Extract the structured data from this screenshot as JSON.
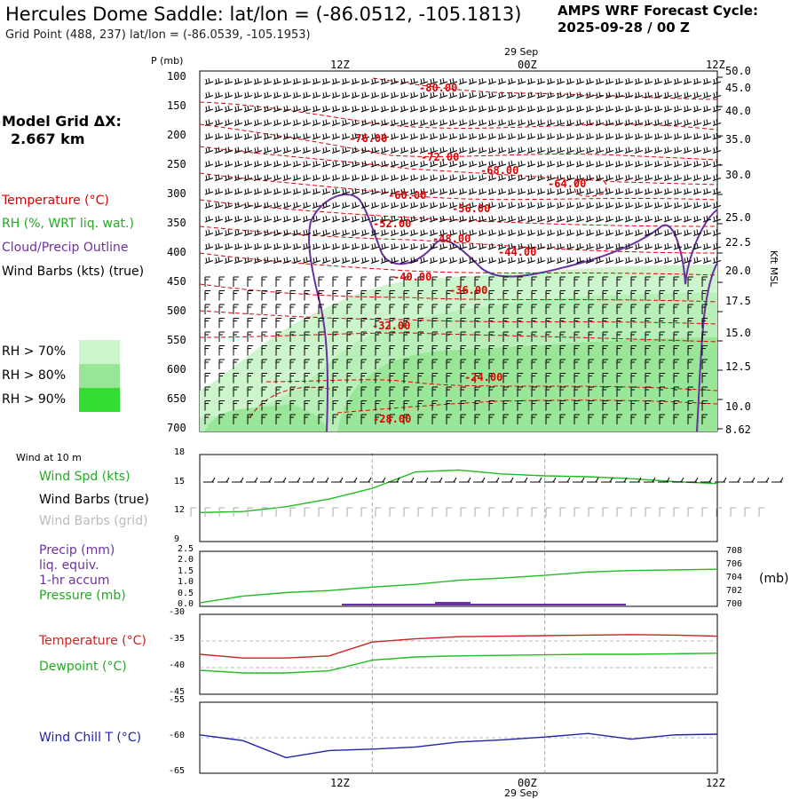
{
  "title": "Hercules Dome Saddle:  lat/lon = (-86.0512, -105.1813)",
  "subtitle": "Grid Point (488, 237) lat/lon = (-86.0539, -105.1953)",
  "cycle_line1": "AMPS WRF Forecast Cycle:",
  "cycle_line2": "2025-09-28 / 00  Z",
  "grid_dx_line1": "Model Grid ΔX:",
  "grid_dx_line2": "2.667 km",
  "time_axis": {
    "date_label": "29 Sep",
    "ticks": [
      "12Z",
      "00Z",
      "12Z"
    ]
  },
  "legend": {
    "temperature": "Temperature (°C)",
    "temperature_color": "#dd0000",
    "rh": "RH (%, WRT liq. wat.)",
    "rh_color": "#22bb22",
    "cloud": "Cloud/Precip Outline",
    "cloud_color": "#7030a0",
    "wind": "Wind Barbs (kts) (true)",
    "rh_levels": [
      {
        "label": "RH > 70%",
        "color": "#ccf5cc"
      },
      {
        "label": "RH > 80%",
        "color": "#99e699"
      },
      {
        "label": "RH > 90%",
        "color": "#33dd33"
      }
    ]
  },
  "pressure_axis": {
    "label": "P (mb)",
    "ticks": [
      "100",
      "150",
      "200",
      "250",
      "300",
      "350",
      "400",
      "450",
      "500",
      "550",
      "600",
      "650",
      "700"
    ]
  },
  "height_axis": {
    "label": "Kft MSL",
    "ticks": [
      "50.0",
      "45.0",
      "40.0",
      "35.0",
      "30.0",
      "25.0",
      "22.5",
      "20.0",
      "17.5",
      "15.0",
      "12.5",
      "10.0",
      "8.62"
    ]
  },
  "temperature_labels": [
    "-80.00",
    "-76.00",
    "-72.00",
    "-68.00",
    "-64.00",
    "-60.00",
    "-56.00",
    "-52.00",
    "-48.00",
    "-44.00",
    "-40.00",
    "-36.00",
    "-32.00",
    "-24.00",
    "-28.00"
  ],
  "sfc_wind": {
    "header": "Wind at 10 m",
    "spd_label": "Wind Spd (kts)",
    "barbs_true": "Wind Barbs (true)",
    "barbs_grid": "Wind Barbs (grid)",
    "yticks": [
      "18",
      "15",
      "12",
      "9"
    ]
  },
  "precip": {
    "label1": "Precip (mm)",
    "label2": "liq. equiv.",
    "label3": "1-hr accum",
    "label4": "Pressure (mb)",
    "unit": "(mb)",
    "yticks_left": [
      "2.5",
      "2.0",
      "1.5",
      "1.0",
      "0.5",
      "0.0"
    ],
    "yticks_right": [
      "708",
      "706",
      "704",
      "702",
      "700"
    ]
  },
  "temp_panel": {
    "temp_label": "Temperature (°C)",
    "dew_label": "Dewpoint (°C)",
    "yticks": [
      "-30",
      "-35",
      "-40",
      "-45"
    ]
  },
  "chill_panel": {
    "label": "Wind Chill T (°C)",
    "yticks": [
      "-55",
      "-60",
      "-65"
    ]
  },
  "chart_data": [
    {
      "type": "line",
      "panel": "wind-speed",
      "x_hours": [
        0,
        3,
        6,
        9,
        12,
        15,
        18,
        21,
        24,
        27,
        30,
        33,
        36
      ],
      "series": [
        {
          "name": "Wind Spd (kts)",
          "values": [
            12.0,
            12.1,
            12.6,
            13.4,
            14.5,
            16.2,
            16.4,
            16.0,
            15.8,
            15.7,
            15.5,
            15.2,
            15.0
          ]
        }
      ],
      "ylim": [
        9,
        18
      ]
    },
    {
      "type": "line",
      "panel": "pressure",
      "x_hours": [
        0,
        3,
        6,
        9,
        12,
        15,
        18,
        21,
        24,
        27,
        30,
        33,
        36
      ],
      "series": [
        {
          "name": "Pressure (mb)",
          "values": [
            700.5,
            701.5,
            702.0,
            702.3,
            702.8,
            703.2,
            703.8,
            704.1,
            704.5,
            705.0,
            705.2,
            705.3,
            705.4
          ]
        }
      ],
      "ylim_right": [
        700,
        708
      ]
    },
    {
      "type": "line",
      "panel": "temperature",
      "x_hours": [
        0,
        3,
        6,
        9,
        12,
        15,
        18,
        21,
        24,
        27,
        30,
        33,
        36
      ],
      "series": [
        {
          "name": "Temperature (°C)",
          "values": [
            -37.5,
            -38.2,
            -38.2,
            -37.8,
            -35.2,
            -34.6,
            -34.2,
            -34.1,
            -34.0,
            -33.9,
            -33.8,
            -33.9,
            -34.1
          ]
        },
        {
          "name": "Dewpoint (°C)",
          "values": [
            -40.5,
            -41.0,
            -41.0,
            -40.6,
            -38.6,
            -38.0,
            -37.8,
            -37.7,
            -37.6,
            -37.5,
            -37.5,
            -37.4,
            -37.3
          ]
        }
      ],
      "ylim": [
        -45,
        -30
      ]
    },
    {
      "type": "line",
      "panel": "wind-chill",
      "x_hours": [
        0,
        3,
        6,
        9,
        12,
        15,
        18,
        21,
        24,
        27,
        30,
        33,
        36
      ],
      "series": [
        {
          "name": "Wind Chill T (°C)",
          "values": [
            -59.6,
            -60.4,
            -62.8,
            -61.8,
            -61.6,
            -61.3,
            -60.6,
            -60.3,
            -59.9,
            -59.4,
            -60.2,
            -59.6,
            -59.5
          ]
        }
      ],
      "ylim": [
        -65,
        -55
      ]
    }
  ]
}
